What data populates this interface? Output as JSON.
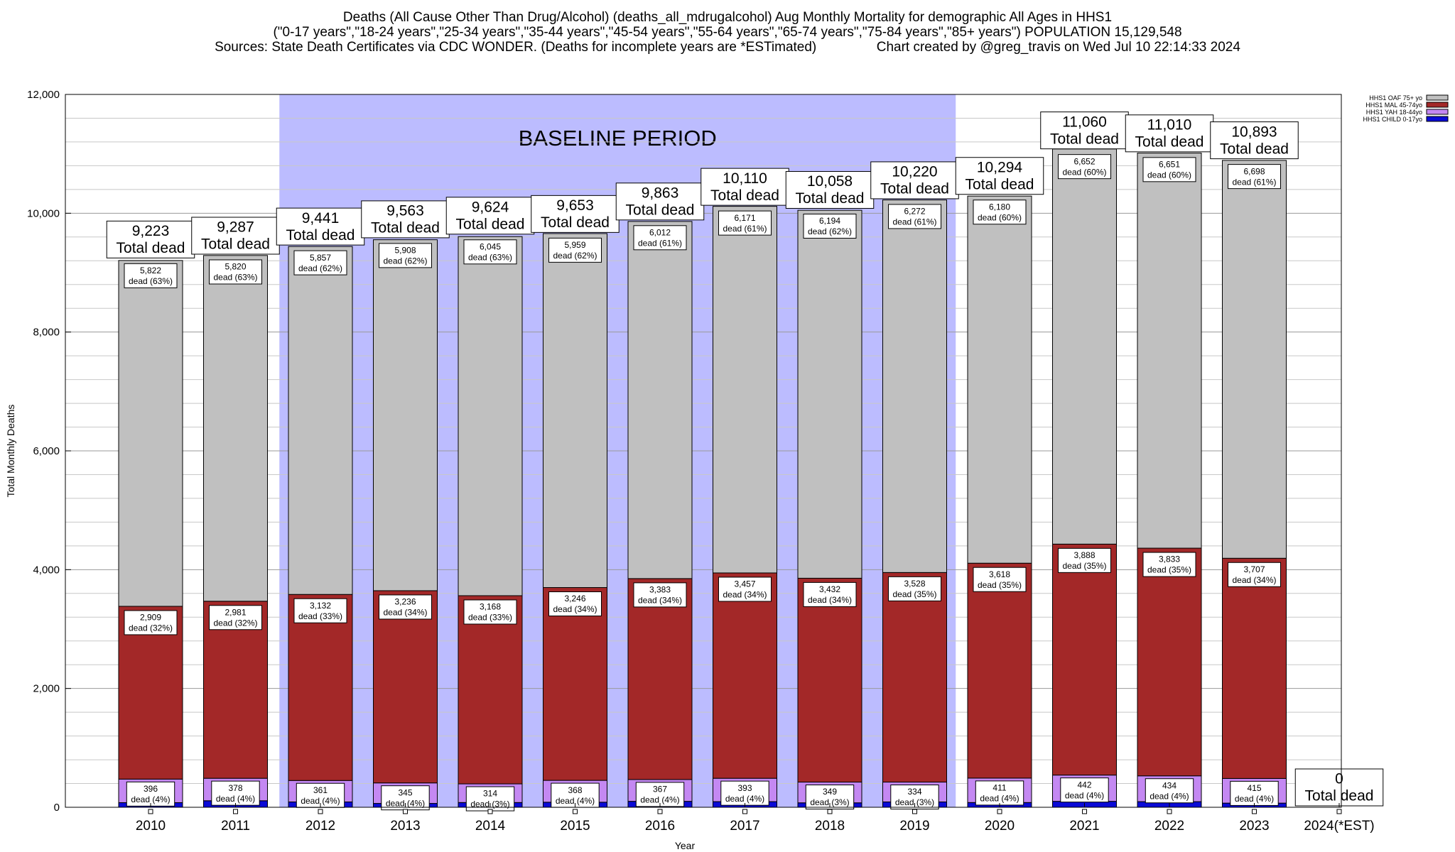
{
  "title_lines": [
    "Deaths (All Cause Other Than Drug/Alcohol) (deaths_all_mdrugalcohol) Aug Monthly Mortality for demographic All Ages in HHS1",
    "(\"0-17 years\",\"18-24 years\",\"25-34 years\",\"35-44 years\",\"45-54 years\",\"55-64 years\",\"65-74 years\",\"75-84 years\",\"85+ years\") POPULATION 15,129,548",
    "Sources: State Death Certificates via CDC WONDER. (Deaths for incomplete years are *ESTimated)                Chart created by @greg_travis on Wed Jul 10 22:14:33 2024"
  ],
  "colors": {
    "child": "#0a0ad6",
    "yah": "#c488f2",
    "mal": "#a32828",
    "oaf": "#c0c0c0",
    "baseline": "#bcbcff"
  },
  "chart_data": {
    "type": "bar",
    "stacked": true,
    "xlabel": "Year",
    "ylabel": "Total Monthly Deaths",
    "ylim": [
      0,
      12000
    ],
    "yticks": [
      0,
      2000,
      4000,
      6000,
      8000,
      10000,
      12000
    ],
    "ytick_labels": [
      "0",
      "2,000",
      "4,000",
      "6,000",
      "8,000",
      "10,000",
      "12,000"
    ],
    "grid": true,
    "legend_position": "top-right",
    "annotation": "BASELINE PERIOD",
    "baseline_range": [
      "2012",
      "2019"
    ],
    "categories": [
      "2010",
      "2011",
      "2012",
      "2013",
      "2014",
      "2015",
      "2016",
      "2017",
      "2018",
      "2019",
      "2020",
      "2021",
      "2022",
      "2023",
      "2024(*EST)"
    ],
    "series": [
      {
        "name": "HHS1 CHILD 0-17yo",
        "key": "child",
        "values": [
          78,
          110,
          90,
          65,
          80,
          85,
          100,
          95,
          75,
          90,
          80,
          100,
          95,
          70,
          0
        ]
      },
      {
        "name": "HHS1 YAH 18-44yo",
        "key": "yah",
        "values": [
          396,
          378,
          361,
          345,
          314,
          368,
          367,
          393,
          349,
          334,
          411,
          442,
          434,
          415,
          0
        ]
      },
      {
        "name": "HHS1 MAL 45-74yo",
        "key": "mal",
        "values": [
          2909,
          2981,
          3132,
          3236,
          3168,
          3246,
          3383,
          3457,
          3432,
          3528,
          3618,
          3888,
          3833,
          3707,
          0
        ]
      },
      {
        "name": "HHS1 OAF 75+ yo",
        "key": "oaf",
        "values": [
          5822,
          5820,
          5857,
          5908,
          6045,
          5959,
          6012,
          6171,
          6194,
          6272,
          6180,
          6652,
          6651,
          6698,
          0
        ]
      }
    ],
    "totals": [
      9223,
      9287,
      9441,
      9563,
      9624,
      9653,
      9863,
      10110,
      10058,
      10220,
      10294,
      11060,
      11010,
      10893,
      0
    ],
    "total_labels": [
      "9,223",
      "9,287",
      "9,441",
      "9,563",
      "9,624",
      "9,653",
      "9,863",
      "10,110",
      "10,058",
      "10,220",
      "10,294",
      "11,060",
      "11,010",
      "10,893",
      "0"
    ],
    "total_suffix": "Total dead",
    "oaf_labels": [
      [
        "5,822",
        "dead (63%)"
      ],
      [
        "5,820",
        "dead (63%)"
      ],
      [
        "5,857",
        "dead (62%)"
      ],
      [
        "5,908",
        "dead (62%)"
      ],
      [
        "6,045",
        "dead (63%)"
      ],
      [
        "5,959",
        "dead (62%)"
      ],
      [
        "6,012",
        "dead (61%)"
      ],
      [
        "6,171",
        "dead (61%)"
      ],
      [
        "6,194",
        "dead (62%)"
      ],
      [
        "6,272",
        "dead (61%)"
      ],
      [
        "6,180",
        "dead (60%)"
      ],
      [
        "6,652",
        "dead (60%)"
      ],
      [
        "6,651",
        "dead (60%)"
      ],
      [
        "6,698",
        "dead (61%)"
      ],
      null
    ],
    "mal_labels": [
      [
        "2,909",
        "dead (32%)"
      ],
      [
        "2,981",
        "dead (32%)"
      ],
      [
        "3,132",
        "dead (33%)"
      ],
      [
        "3,236",
        "dead (34%)"
      ],
      [
        "3,168",
        "dead (33%)"
      ],
      [
        "3,246",
        "dead (34%)"
      ],
      [
        "3,383",
        "dead (34%)"
      ],
      [
        "3,457",
        "dead (34%)"
      ],
      [
        "3,432",
        "dead (34%)"
      ],
      [
        "3,528",
        "dead (35%)"
      ],
      [
        "3,618",
        "dead (35%)"
      ],
      [
        "3,888",
        "dead (35%)"
      ],
      [
        "3,833",
        "dead (35%)"
      ],
      [
        "3,707",
        "dead (34%)"
      ],
      null
    ],
    "yah_labels": [
      [
        "396",
        "dead (4%)"
      ],
      [
        "378",
        "dead (4%)"
      ],
      [
        "361",
        "dead (4%)"
      ],
      [
        "345",
        "dead (4%)"
      ],
      [
        "314",
        "dead (3%)"
      ],
      [
        "368",
        "dead (4%)"
      ],
      [
        "367",
        "dead (4%)"
      ],
      [
        "393",
        "dead (4%)"
      ],
      [
        "349",
        "dead (3%)"
      ],
      [
        "334",
        "dead (3%)"
      ],
      [
        "411",
        "dead (4%)"
      ],
      [
        "442",
        "dead (4%)"
      ],
      [
        "434",
        "dead (4%)"
      ],
      [
        "415",
        "dead (4%)"
      ],
      null
    ]
  }
}
